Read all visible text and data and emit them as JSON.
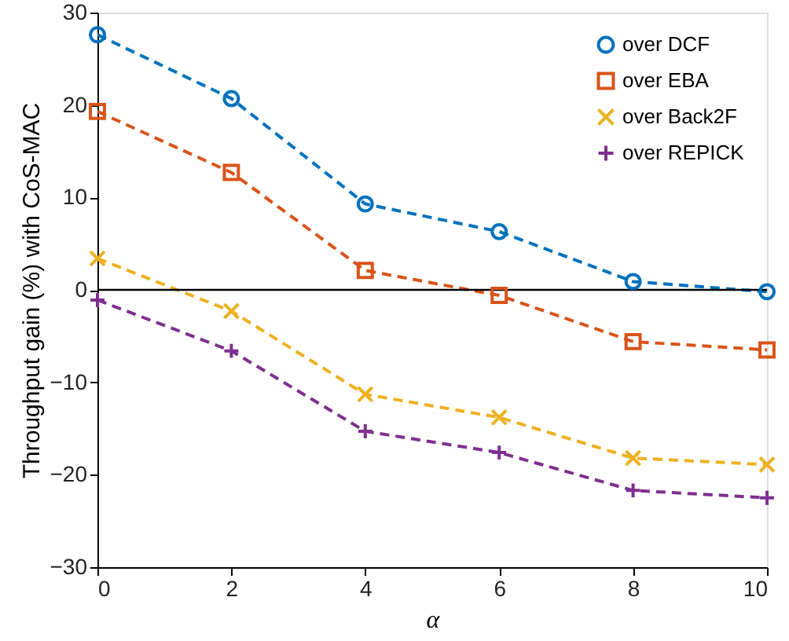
{
  "chart_data": {
    "type": "line",
    "xlabel": "α",
    "ylabel": "Throughput gain (%) with CoS-MAC",
    "x": [
      0,
      2,
      4,
      6,
      8,
      10
    ],
    "series": [
      {
        "name": "over DCF",
        "color": "#0072bd",
        "marker": "circle",
        "values": [
          27.6,
          20.7,
          9.3,
          6.3,
          0.9,
          -0.2
        ]
      },
      {
        "name": "over EBA",
        "color": "#d95319",
        "marker": "square",
        "values": [
          19.3,
          12.7,
          2.1,
          -0.6,
          -5.6,
          -6.5
        ]
      },
      {
        "name": "over Back2F",
        "color": "#edb120",
        "marker": "x",
        "values": [
          3.4,
          -2.3,
          -11.3,
          -13.8,
          -18.2,
          -18.9
        ]
      },
      {
        "name": "over REPICK",
        "color": "#7e2f8e",
        "marker": "cross",
        "values": [
          -1.1,
          -6.6,
          -15.3,
          -17.6,
          -21.7,
          -22.5
        ]
      }
    ],
    "xlim": [
      0,
      10
    ],
    "xticks": [
      0,
      2,
      4,
      6,
      8,
      10
    ],
    "ylim": [
      -30,
      30
    ],
    "yticks": [
      -30,
      -20,
      -10,
      0,
      10,
      20,
      30
    ],
    "ref_lines": [
      {
        "axis": "y",
        "value": 0,
        "color": "#000000"
      }
    ],
    "line_style": "dashed",
    "grid": false,
    "legend": "top right"
  }
}
